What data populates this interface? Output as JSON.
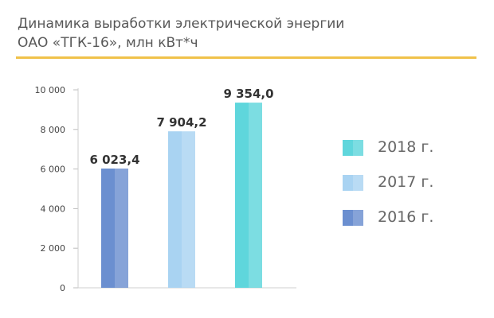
{
  "title": {
    "line1": "Динамика выработки электрической энергии",
    "line2": "ОАО «ТГК-16», млн кВт*ч"
  },
  "colors": {
    "accent_rule": "#f0c24a",
    "y2016": "#6b8fd0",
    "y2017": "#a9d3f2",
    "y2018": "#5fd6dc"
  },
  "chart_data": {
    "type": "bar",
    "title": "Динамика выработки электрической энергии ОАО «ТГК-16», млн кВт*ч",
    "categories": [
      "2016 г.",
      "2017 г.",
      "2018 г."
    ],
    "values": [
      6023.4,
      7904.2,
      9354.0
    ],
    "value_labels": [
      "6 023,4",
      "7 904,2",
      "9 354,0"
    ],
    "ylim": [
      0,
      10000
    ],
    "yticks": [
      0,
      2000,
      4000,
      6000,
      8000,
      10000
    ],
    "ytick_labels": [
      "0",
      "2 000",
      "4 000",
      "6 000",
      "8 000",
      "10 000"
    ],
    "grid": false,
    "legend_position": "right",
    "legend": [
      {
        "label": "2018 г.",
        "color": "#5fd6dc"
      },
      {
        "label": "2017 г.",
        "color": "#a9d3f2"
      },
      {
        "label": "2016 г.",
        "color": "#6b8fd0"
      }
    ]
  }
}
